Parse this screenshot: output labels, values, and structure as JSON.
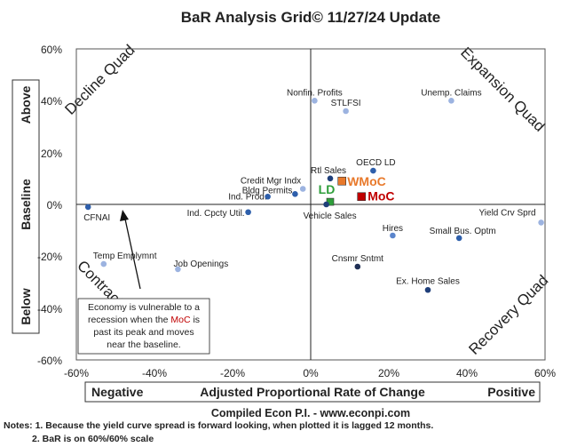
{
  "chart_data": {
    "type": "scatter",
    "title": "BaR Analysis Grid© 11/27/24 Update",
    "xlabel": "Adjusted Proportional Rate of Change",
    "x_left_label": "Negative",
    "x_right_label": "Positive",
    "ylabels": [
      "Above",
      "Baseline",
      "Below"
    ],
    "xlim": [
      -60,
      60
    ],
    "ylim": [
      -60,
      60
    ],
    "xticks": [
      "-60%",
      "-40%",
      "-20%",
      "0%",
      "20%",
      "40%",
      "60%"
    ],
    "yticks": [
      "60%",
      "40%",
      "20%",
      "0%",
      "-20%",
      "-40%",
      "-60%"
    ],
    "quadrants": {
      "decline": {
        "label": "Decline Quad",
        "color": "#f5c242"
      },
      "expansion": {
        "label": "Expansion Quad",
        "color": "#7fd6a6"
      },
      "contraction": {
        "label": "Contraction Quad",
        "color": "#e07070"
      },
      "recovery": {
        "label": "Recovery Quad",
        "color": "#5aa9dc"
      }
    },
    "points": [
      {
        "name": "Nonfin. Profits",
        "x": 1,
        "y": 40,
        "color": "#9cb3e0"
      },
      {
        "name": "STLFSI",
        "x": 9,
        "y": 36,
        "color": "#9cb3e0"
      },
      {
        "name": "Unemp. Claims",
        "x": 36,
        "y": 40,
        "color": "#9cb3e0"
      },
      {
        "name": "OECD LD",
        "x": 16,
        "y": 13,
        "color": "#2e5fab"
      },
      {
        "name": "Rtl Sales",
        "x": 5,
        "y": 10,
        "color": "#1f3f7a"
      },
      {
        "name": "WMoC",
        "x": 8,
        "y": 9,
        "color": "#e8792b"
      },
      {
        "name": "MoC",
        "x": 13,
        "y": 3,
        "color": "#c00000"
      },
      {
        "name": "LD",
        "x": 5,
        "y": 1,
        "color": "#2e9e3a"
      },
      {
        "name": "Vehicle Sales",
        "x": 4,
        "y": 0,
        "color": "#1f3f7a"
      },
      {
        "name": "Credit Mgr Indx",
        "x": -2,
        "y": 6,
        "color": "#9cb3e0"
      },
      {
        "name": "Bldg Permits",
        "x": -4,
        "y": 4,
        "color": "#2e5fab"
      },
      {
        "name": "Ind. Prod.",
        "x": -11,
        "y": 3,
        "color": "#2e5fab"
      },
      {
        "name": "Ind. Cpcty Util.",
        "x": -16,
        "y": -3,
        "color": "#2e5fab"
      },
      {
        "name": "CFNAI",
        "x": -57,
        "y": -1,
        "color": "#2e5fab"
      },
      {
        "name": "Yield Crv Sprd",
        "x": 59,
        "y": -7,
        "color": "#9cb3e0"
      },
      {
        "name": "Hires",
        "x": 21,
        "y": -12,
        "color": "#5a85cc"
      },
      {
        "name": "Small Bus. Optm",
        "x": 38,
        "y": -13,
        "color": "#2e5fab"
      },
      {
        "name": "Cnsmr Sntmt",
        "x": 12,
        "y": -24,
        "color": "#1f2f55"
      },
      {
        "name": "Ex. Home Sales",
        "x": 30,
        "y": -33,
        "color": "#1f3f7a"
      },
      {
        "name": "Temp Emplymnt",
        "x": -53,
        "y": -23,
        "color": "#9cb3e0"
      },
      {
        "name": "Job Openings",
        "x": -34,
        "y": -25,
        "color": "#9cb3e0"
      }
    ],
    "annotation": {
      "line1": "Economy is vulnerable to a",
      "line2_pre": "recession when the ",
      "line2_moc": "MoC",
      "line2_post": " is",
      "line3": "past its peak and moves",
      "line4": "near the baseline."
    },
    "source": "Compiled Econ P.I. - www.econpi.com"
  },
  "notes": {
    "line1": "Notes: 1. Because the yield curve spread is forward looking, when plotted it is lagged 12 months.",
    "line2": "2. BaR is on 60%/60% scale"
  }
}
